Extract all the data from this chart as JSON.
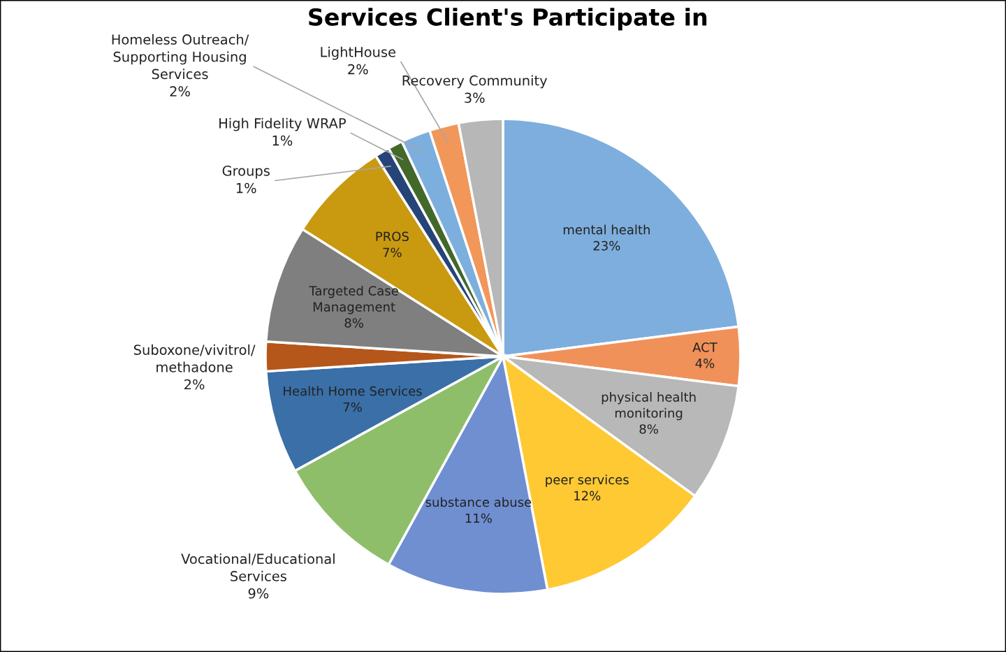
{
  "chart_data": {
    "type": "pie",
    "title": "Services Client's Participate in",
    "categories": [
      "mental health",
      "ACT",
      "physical health\nmonitoring",
      "peer services",
      "substance abuse",
      "Vocational/Educational\nServices",
      "Health Home Services",
      "Suboxone/vivitrol/\nmethadone",
      "Targeted Case\nManagement",
      "PROS",
      "Groups",
      "High Fidelity WRAP",
      "Homeless Outreach/\nSupporting Housing\nServices",
      "LightHouse",
      "Recovery Community"
    ],
    "values": [
      23,
      4,
      8,
      12,
      11,
      9,
      7,
      2,
      8,
      7,
      1,
      1,
      2,
      2,
      3
    ],
    "value_labels": [
      "23%",
      "4%",
      "8%",
      "12%",
      "11%",
      "9%",
      "7%",
      "2%",
      "8%",
      "7%",
      "1%",
      "1%",
      "2%",
      "2%",
      "3%"
    ],
    "colors": [
      "#7eaedd",
      "#f0915a",
      "#b8b8b8",
      "#ffc933",
      "#6f8fd1",
      "#8fbe6a",
      "#3a6fa8",
      "#b5561a",
      "#7f7f7f",
      "#c9990f",
      "#264478",
      "#43682b",
      "#7cafdd",
      "#f1975a",
      "#b7b7b7"
    ],
    "legend": false
  }
}
